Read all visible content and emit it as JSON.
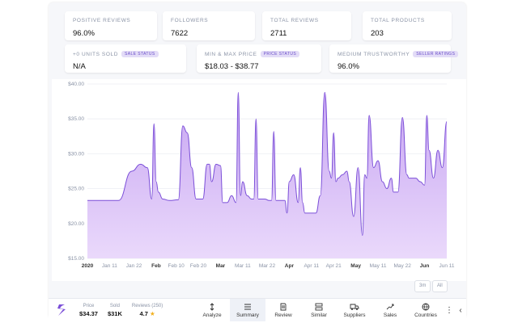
{
  "stats_row1": [
    {
      "label": "POSITIVE REVIEWS",
      "value": "96.0%"
    },
    {
      "label": "FOLLOWERS",
      "value": "7622"
    },
    {
      "label": "TOTAL REVIEWS",
      "value": "2711"
    },
    {
      "label": "TOTAL PRODUCTS",
      "value": "203"
    }
  ],
  "stats_row2": [
    {
      "label": "+0 UNITS SOLD",
      "badge": "SALE STATUS",
      "value": "N/A"
    },
    {
      "label": "MIN & MAX PRICE",
      "badge": "PRICE STATUS",
      "value": "$18.03 - $38.77"
    },
    {
      "label": "MEDIUM TRUSTWORTHY",
      "badge": "SELLER RATINGS",
      "value": "96.0%"
    }
  ],
  "chart_data": {
    "type": "area",
    "title": "",
    "xlabel": "",
    "ylabel": "",
    "ylim": [
      15,
      40
    ],
    "y_ticks": [
      "$15.00",
      "$20.00",
      "$25.00",
      "$30.00",
      "$35.00",
      "$40.00"
    ],
    "y_tick_values": [
      15,
      20,
      25,
      30,
      35,
      40
    ],
    "x_ticks": [
      "2020",
      "Jan 11",
      "Jan 22",
      "Feb",
      "Feb 10",
      "Feb 20",
      "Mar",
      "Mar 11",
      "Mar 22",
      "Apr",
      "Apr 11",
      "Apr 21",
      "May",
      "May 11",
      "May 22",
      "Jun",
      "Jun 11"
    ],
    "x_tick_bold": [
      true,
      false,
      false,
      true,
      false,
      false,
      true,
      false,
      false,
      true,
      false,
      false,
      true,
      false,
      false,
      true,
      false
    ],
    "x_tick_days": [
      0,
      10,
      21,
      31,
      40,
      50,
      60,
      70,
      81,
      91,
      101,
      111,
      121,
      131,
      142,
      152,
      162
    ],
    "x_days": [
      0,
      8,
      14,
      20,
      24,
      27,
      29,
      30,
      31,
      32,
      34,
      37,
      41,
      43,
      45,
      47,
      49,
      52,
      54,
      55,
      56,
      58,
      60,
      61,
      63,
      65,
      67,
      68,
      69,
      70,
      72,
      74,
      75,
      76,
      77,
      78,
      80,
      82,
      83,
      84,
      85,
      87,
      89,
      90,
      91,
      93,
      95,
      96,
      97,
      98,
      100,
      101,
      103,
      105,
      107,
      109,
      110,
      111,
      112,
      113,
      115,
      117,
      118,
      120,
      122,
      124,
      125,
      126,
      127,
      129,
      131,
      133,
      135,
      137,
      138,
      139,
      140,
      142,
      144,
      145,
      146,
      148,
      150,
      152,
      153,
      154,
      156,
      158,
      160,
      162
    ],
    "values": [
      23.3,
      23.3,
      23.3,
      27.5,
      28.5,
      28.0,
      23.5,
      34.3,
      26.0,
      24.5,
      23.5,
      23.3,
      23.4,
      34.0,
      33.0,
      28.0,
      23.5,
      23.5,
      28.5,
      28.5,
      26.0,
      28.5,
      28.3,
      23.0,
      23.0,
      24.0,
      23.0,
      38.8,
      24.0,
      26.0,
      24.0,
      23.5,
      23.5,
      35.0,
      23.5,
      23.5,
      23.5,
      23.3,
      23.3,
      33.2,
      23.3,
      23.3,
      23.3,
      21.5,
      26.0,
      27.0,
      23.0,
      28.0,
      23.0,
      21.5,
      21.5,
      21.5,
      21.5,
      24.0,
      38.8,
      27.5,
      26.5,
      33.0,
      26.0,
      26.5,
      27.0,
      27.5,
      26.0,
      21.0,
      28.0,
      18.3,
      27.0,
      26.5,
      35.5,
      28.0,
      29.0,
      26.0,
      25.0,
      26.5,
      24.5,
      24.5,
      24.5,
      35.2,
      27.0,
      26.5,
      26.5,
      26.5,
      26.0,
      25.5,
      35.5,
      30.5,
      26.5,
      30.5,
      28.0,
      34.6
    ],
    "colors": {
      "line": "#7b4fd8",
      "fill_top": "#c7a5f2",
      "fill_bottom": "#ead9fb",
      "grid": "#eceef3"
    }
  },
  "range_buttons": [
    "3m",
    "All"
  ],
  "bottom_bar": {
    "stats": [
      {
        "label": "Price",
        "value": "$34.37"
      },
      {
        "label": "Sold",
        "value": "$31K"
      },
      {
        "label": "Reviews (250)",
        "value": "4.7"
      }
    ],
    "nav": [
      {
        "label": "Analyze",
        "icon": "analyze-icon",
        "active": false
      },
      {
        "label": "Summary",
        "icon": "summary-icon",
        "active": true
      },
      {
        "label": "Review",
        "icon": "review-icon",
        "active": false
      },
      {
        "label": "Similar",
        "icon": "similar-icon",
        "active": false
      },
      {
        "label": "Suppliers",
        "icon": "truck-icon",
        "active": false
      },
      {
        "label": "Sales",
        "icon": "trend-icon",
        "active": false
      },
      {
        "label": "Countries",
        "icon": "globe-icon",
        "active": false
      }
    ]
  }
}
